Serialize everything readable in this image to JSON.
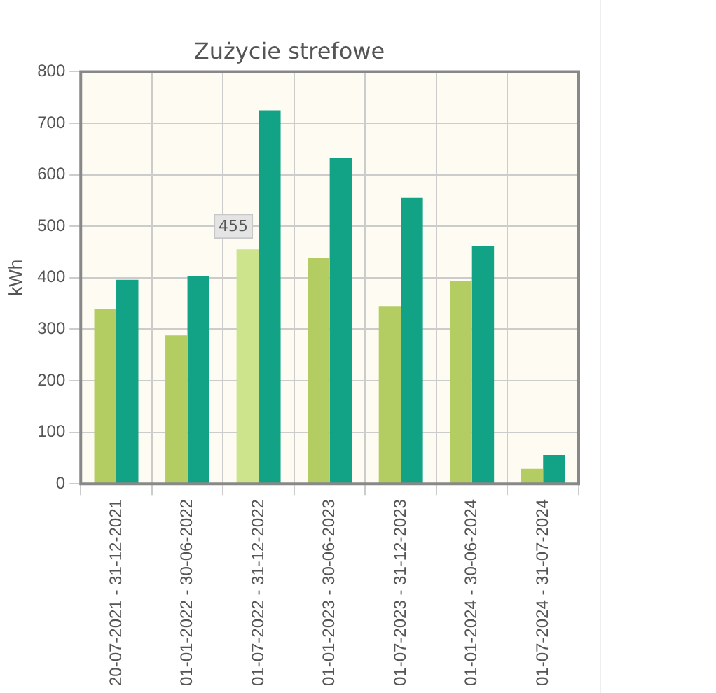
{
  "chart_data": {
    "type": "bar",
    "title": "Zużycie strefowe",
    "ylabel": "kWh",
    "categories": [
      "20-07-2021 - 31-12-2021",
      "01-01-2022 - 30-06-2022",
      "01-07-2022 - 31-12-2022",
      "01-01-2023 - 30-06-2023",
      "01-07-2023 - 31-12-2023",
      "01-01-2024 - 30-06-2024",
      "01-07-2024 - 31-07-2024"
    ],
    "series": [
      {
        "color": "#b3cd62",
        "colors": [
          null,
          null,
          "#cde48c",
          null,
          null,
          null,
          null
        ],
        "values": [
          340,
          288,
          455,
          439,
          345,
          394,
          29
        ]
      },
      {
        "color": "#12a386",
        "values": [
          396,
          403,
          725,
          632,
          555,
          462,
          56
        ]
      }
    ],
    "ylim": [
      0,
      800
    ],
    "yticks": [
      0,
      100,
      200,
      300,
      400,
      500,
      600,
      700,
      800
    ],
    "grid": true,
    "legend": false,
    "annotations": [
      {
        "text": "455",
        "x": "01-07-2022 - 31-12-2022",
        "y": 455
      }
    ]
  }
}
